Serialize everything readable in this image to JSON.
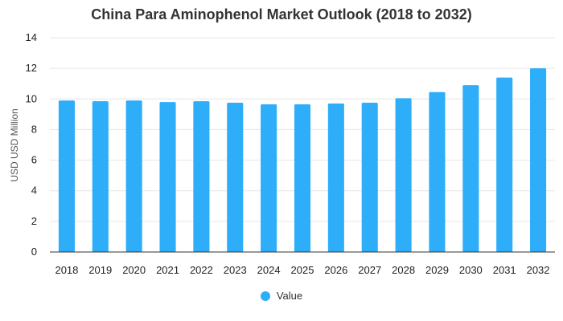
{
  "chart_data": {
    "type": "bar",
    "title": "China Para Aminophenol Market Outlook (2018 to 2032)",
    "xlabel": "",
    "ylabel": "USD USD Million",
    "categories": [
      "2018",
      "2019",
      "2020",
      "2021",
      "2022",
      "2023",
      "2024",
      "2025",
      "2026",
      "2027",
      "2028",
      "2029",
      "2030",
      "2031",
      "2032"
    ],
    "series": [
      {
        "name": "Value",
        "color": "#2eaef8",
        "values": [
          9.9,
          9.85,
          9.9,
          9.8,
          9.85,
          9.75,
          9.65,
          9.65,
          9.7,
          9.75,
          10.05,
          10.45,
          10.9,
          11.4,
          12.0
        ]
      }
    ],
    "ylim": [
      0,
      14
    ],
    "yticks": [
      0,
      2,
      4,
      6,
      8,
      10,
      12,
      14
    ],
    "grid": true,
    "legend_position": "bottom"
  }
}
